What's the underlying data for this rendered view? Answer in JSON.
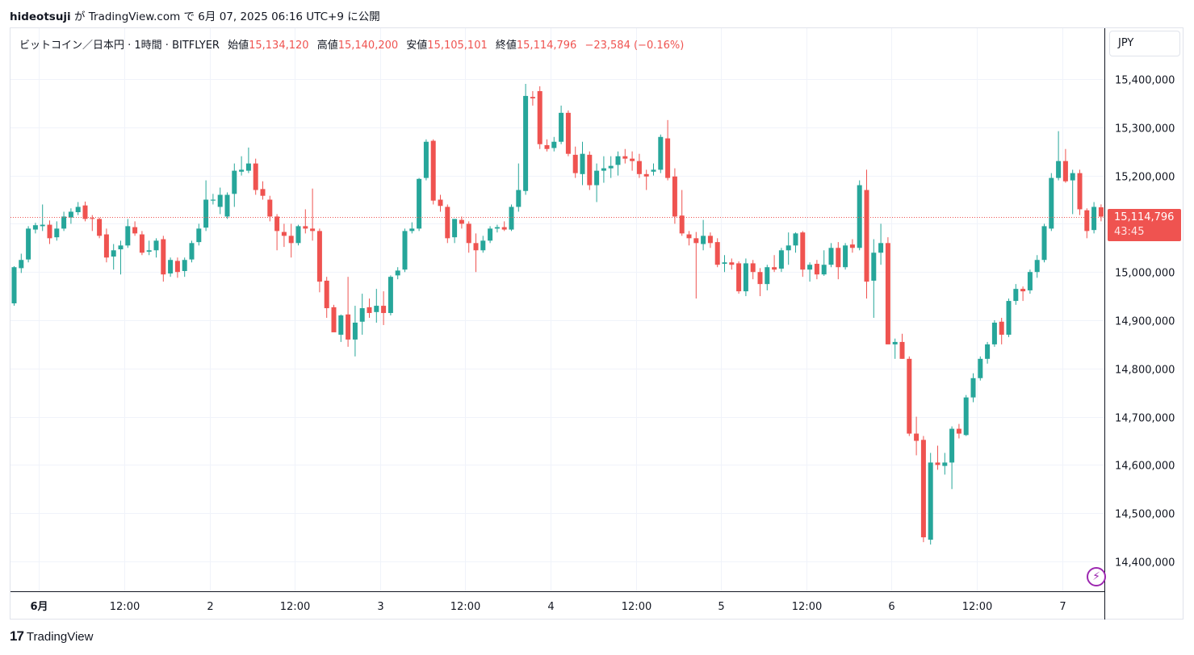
{
  "header": {
    "author": "hideotsuji",
    "text": "が TradingView.com で 6月 07, 2025 06:16 UTC+9 に公開"
  },
  "legend": {
    "symbol": "ビットコイン／日本円 · 1時間 · BITFLYER",
    "open_label": "始値",
    "open": "15,134,120",
    "high_label": "高値",
    "high": "15,140,200",
    "low_label": "安値",
    "low": "15,105,101",
    "close_label": "終値",
    "close": "15,114,796",
    "change": "−23,584 (−0.16%)"
  },
  "currency_button": "JPY",
  "price_tag": {
    "price": "15,114,796",
    "countdown": "43:45"
  },
  "footer": {
    "logo_mark": "17",
    "logo_text": "TradingView"
  },
  "colors": {
    "up": "#26a69a",
    "down": "#ef5350",
    "grid": "#f0f3fa",
    "last_price_line": "#ef5350"
  },
  "chart_data": {
    "type": "candlestick",
    "ylim": [
      14330000,
      15500000
    ],
    "y_ticks": [
      14400000,
      14500000,
      14600000,
      14700000,
      14800000,
      14900000,
      15000000,
      15100000,
      15200000,
      15300000,
      15400000
    ],
    "y_tick_labels": [
      "14,400,000",
      "14,500,000",
      "14,600,000",
      "14,700,000",
      "14,800,000",
      "14,900,000",
      "15,000,000",
      "15,100,000",
      "15,200,000",
      "15,300,000",
      "15,400,000"
    ],
    "x_ticks": [
      {
        "label": "6月",
        "bar": 3.5,
        "bold": true
      },
      {
        "label": "12:00",
        "bar": 15.5
      },
      {
        "label": "2",
        "bar": 27.5
      },
      {
        "label": "12:00",
        "bar": 39.5
      },
      {
        "label": "3",
        "bar": 51.5
      },
      {
        "label": "12:00",
        "bar": 63.5
      },
      {
        "label": "4",
        "bar": 75.5
      },
      {
        "label": "12:00",
        "bar": 87.5
      },
      {
        "label": "5",
        "bar": 99.5
      },
      {
        "label": "12:00",
        "bar": 111.5
      },
      {
        "label": "6",
        "bar": 123.5
      },
      {
        "label": "12:00",
        "bar": 135.5
      },
      {
        "label": "7",
        "bar": 147.5
      }
    ],
    "last_price": 15114796,
    "candles": [
      {
        "o": 14935000,
        "h": 15012000,
        "l": 14930000,
        "c": 15010000
      },
      {
        "o": 15008000,
        "h": 15038000,
        "l": 14998000,
        "c": 15025000
      },
      {
        "o": 15026000,
        "h": 15095000,
        "l": 15020000,
        "c": 15090000
      },
      {
        "o": 15088000,
        "h": 15102000,
        "l": 15080000,
        "c": 15097000
      },
      {
        "o": 15095000,
        "h": 15140000,
        "l": 15085000,
        "c": 15098000
      },
      {
        "o": 15098000,
        "h": 15107000,
        "l": 15058000,
        "c": 15070000
      },
      {
        "o": 15072000,
        "h": 15105000,
        "l": 15065000,
        "c": 15090000
      },
      {
        "o": 15090000,
        "h": 15125000,
        "l": 15085000,
        "c": 15115000
      },
      {
        "o": 15113000,
        "h": 15132000,
        "l": 15100000,
        "c": 15125000
      },
      {
        "o": 15124000,
        "h": 15145000,
        "l": 15118000,
        "c": 15135000
      },
      {
        "o": 15138000,
        "h": 15146000,
        "l": 15105000,
        "c": 15110000
      },
      {
        "o": 15112000,
        "h": 15118000,
        "l": 15085000,
        "c": 15110000
      },
      {
        "o": 15110000,
        "h": 15113000,
        "l": 15070000,
        "c": 15075000
      },
      {
        "o": 15078000,
        "h": 15090000,
        "l": 15020000,
        "c": 15030000
      },
      {
        "o": 15032000,
        "h": 15058000,
        "l": 15005000,
        "c": 15045000
      },
      {
        "o": 15047000,
        "h": 15065000,
        "l": 14995000,
        "c": 15055000
      },
      {
        "o": 15055000,
        "h": 15110000,
        "l": 15050000,
        "c": 15095000
      },
      {
        "o": 15093000,
        "h": 15105000,
        "l": 15075000,
        "c": 15080000
      },
      {
        "o": 15078000,
        "h": 15085000,
        "l": 15035000,
        "c": 15040000
      },
      {
        "o": 15042000,
        "h": 15065000,
        "l": 15035000,
        "c": 15045000
      },
      {
        "o": 15045000,
        "h": 15070000,
        "l": 15030000,
        "c": 15065000
      },
      {
        "o": 15068000,
        "h": 15075000,
        "l": 14980000,
        "c": 14995000
      },
      {
        "o": 14997000,
        "h": 15030000,
        "l": 14990000,
        "c": 15025000
      },
      {
        "o": 15023000,
        "h": 15030000,
        "l": 14988000,
        "c": 15000000
      },
      {
        "o": 15002000,
        "h": 15030000,
        "l": 14990000,
        "c": 15025000
      },
      {
        "o": 15026000,
        "h": 15065000,
        "l": 15020000,
        "c": 15060000
      },
      {
        "o": 15062000,
        "h": 15100000,
        "l": 15055000,
        "c": 15090000
      },
      {
        "o": 15092000,
        "h": 15190000,
        "l": 15085000,
        "c": 15150000
      },
      {
        "o": 15148000,
        "h": 15162000,
        "l": 15140000,
        "c": 15150000
      },
      {
        "o": 15135000,
        "h": 15175000,
        "l": 15120000,
        "c": 15160000
      },
      {
        "o": 15115000,
        "h": 15165000,
        "l": 15110000,
        "c": 15160000
      },
      {
        "o": 15162000,
        "h": 15225000,
        "l": 15135000,
        "c": 15210000
      },
      {
        "o": 15208000,
        "h": 15240000,
        "l": 15200000,
        "c": 15212000
      },
      {
        "o": 15210000,
        "h": 15258000,
        "l": 15205000,
        "c": 15225000
      },
      {
        "o": 15225000,
        "h": 15235000,
        "l": 15160000,
        "c": 15170000
      },
      {
        "o": 15172000,
        "h": 15188000,
        "l": 15150000,
        "c": 15158000
      },
      {
        "o": 15150000,
        "h": 15158000,
        "l": 15105000,
        "c": 15115000
      },
      {
        "o": 15115000,
        "h": 15120000,
        "l": 15045000,
        "c": 15085000
      },
      {
        "o": 15083000,
        "h": 15100000,
        "l": 15052000,
        "c": 15075000
      },
      {
        "o": 15075000,
        "h": 15100000,
        "l": 15030000,
        "c": 15060000
      },
      {
        "o": 15060000,
        "h": 15098000,
        "l": 15055000,
        "c": 15095000
      },
      {
        "o": 15095000,
        "h": 15130000,
        "l": 15080000,
        "c": 15090000
      },
      {
        "o": 15090000,
        "h": 15173000,
        "l": 15065000,
        "c": 15085000
      },
      {
        "o": 15085000,
        "h": 15090000,
        "l": 14958000,
        "c": 14980000
      },
      {
        "o": 14982000,
        "h": 14990000,
        "l": 14905000,
        "c": 14925000
      },
      {
        "o": 14927000,
        "h": 14932000,
        "l": 14880000,
        "c": 14875000
      },
      {
        "o": 14870000,
        "h": 14912000,
        "l": 14855000,
        "c": 14910000
      },
      {
        "o": 14912000,
        "h": 14990000,
        "l": 14845000,
        "c": 14860000
      },
      {
        "o": 14860000,
        "h": 14930000,
        "l": 14825000,
        "c": 14895000
      },
      {
        "o": 14897000,
        "h": 14955000,
        "l": 14870000,
        "c": 14925000
      },
      {
        "o": 14927000,
        "h": 14945000,
        "l": 14905000,
        "c": 14915000
      },
      {
        "o": 14917000,
        "h": 14965000,
        "l": 14895000,
        "c": 14930000
      },
      {
        "o": 14930000,
        "h": 14960000,
        "l": 14890000,
        "c": 14915000
      },
      {
        "o": 14915000,
        "h": 14993000,
        "l": 14910000,
        "c": 14990000
      },
      {
        "o": 14993000,
        "h": 15010000,
        "l": 14985000,
        "c": 15003000
      },
      {
        "o": 15005000,
        "h": 15090000,
        "l": 15000000,
        "c": 15085000
      },
      {
        "o": 15085000,
        "h": 15103000,
        "l": 15080000,
        "c": 15090000
      },
      {
        "o": 15090000,
        "h": 15195000,
        "l": 15085000,
        "c": 15193000
      },
      {
        "o": 15195000,
        "h": 15275000,
        "l": 15190000,
        "c": 15270000
      },
      {
        "o": 15272000,
        "h": 15275000,
        "l": 15140000,
        "c": 15148000
      },
      {
        "o": 15150000,
        "h": 15160000,
        "l": 15125000,
        "c": 15137000
      },
      {
        "o": 15135000,
        "h": 15140000,
        "l": 15060000,
        "c": 15070000
      },
      {
        "o": 15072000,
        "h": 15110000,
        "l": 15060000,
        "c": 15110000
      },
      {
        "o": 15108000,
        "h": 15115000,
        "l": 15090000,
        "c": 15100000
      },
      {
        "o": 15100000,
        "h": 15105000,
        "l": 15040000,
        "c": 15060000
      },
      {
        "o": 15060000,
        "h": 15080000,
        "l": 15000000,
        "c": 15045000
      },
      {
        "o": 15045000,
        "h": 15075000,
        "l": 15040000,
        "c": 15065000
      },
      {
        "o": 15065000,
        "h": 15095000,
        "l": 15060000,
        "c": 15090000
      },
      {
        "o": 15090000,
        "h": 15098000,
        "l": 15082000,
        "c": 15093000
      },
      {
        "o": 15093000,
        "h": 15105000,
        "l": 15085000,
        "c": 15088000
      },
      {
        "o": 15088000,
        "h": 15140000,
        "l": 15085000,
        "c": 15135000
      },
      {
        "o": 15135000,
        "h": 15225000,
        "l": 15125000,
        "c": 15170000
      },
      {
        "o": 15168000,
        "h": 15390000,
        "l": 15160000,
        "c": 15365000
      },
      {
        "o": 15363000,
        "h": 15375000,
        "l": 15345000,
        "c": 15360000
      },
      {
        "o": 15375000,
        "h": 15385000,
        "l": 15255000,
        "c": 15265000
      },
      {
        "o": 15263000,
        "h": 15275000,
        "l": 15250000,
        "c": 15255000
      },
      {
        "o": 15257000,
        "h": 15280000,
        "l": 15250000,
        "c": 15270000
      },
      {
        "o": 15270000,
        "h": 15345000,
        "l": 15265000,
        "c": 15330000
      },
      {
        "o": 15330000,
        "h": 15335000,
        "l": 15240000,
        "c": 15245000
      },
      {
        "o": 15243000,
        "h": 15260000,
        "l": 15195000,
        "c": 15205000
      },
      {
        "o": 15203000,
        "h": 15270000,
        "l": 15180000,
        "c": 15245000
      },
      {
        "o": 15243000,
        "h": 15250000,
        "l": 15170000,
        "c": 15180000
      },
      {
        "o": 15180000,
        "h": 15225000,
        "l": 15145000,
        "c": 15210000
      },
      {
        "o": 15210000,
        "h": 15240000,
        "l": 15185000,
        "c": 15215000
      },
      {
        "o": 15215000,
        "h": 15240000,
        "l": 15195000,
        "c": 15220000
      },
      {
        "o": 15222000,
        "h": 15250000,
        "l": 15200000,
        "c": 15240000
      },
      {
        "o": 15240000,
        "h": 15255000,
        "l": 15225000,
        "c": 15235000
      },
      {
        "o": 15235000,
        "h": 15250000,
        "l": 15210000,
        "c": 15230000
      },
      {
        "o": 15230000,
        "h": 15245000,
        "l": 15195000,
        "c": 15203000
      },
      {
        "o": 15203000,
        "h": 15212000,
        "l": 15170000,
        "c": 15198000
      },
      {
        "o": 15208000,
        "h": 15225000,
        "l": 15200000,
        "c": 15212000
      },
      {
        "o": 15212000,
        "h": 15285000,
        "l": 15205000,
        "c": 15280000
      },
      {
        "o": 15277000,
        "h": 15315000,
        "l": 15190000,
        "c": 15195000
      },
      {
        "o": 15198000,
        "h": 15215000,
        "l": 15100000,
        "c": 15115000
      },
      {
        "o": 15117000,
        "h": 15170000,
        "l": 15075000,
        "c": 15080000
      },
      {
        "o": 15078000,
        "h": 15085000,
        "l": 15055000,
        "c": 15070000
      },
      {
        "o": 15070000,
        "h": 15083000,
        "l": 14945000,
        "c": 15060000
      },
      {
        "o": 15058000,
        "h": 15108000,
        "l": 15045000,
        "c": 15075000
      },
      {
        "o": 15075000,
        "h": 15082000,
        "l": 15050000,
        "c": 15060000
      },
      {
        "o": 15062000,
        "h": 15070000,
        "l": 15010000,
        "c": 15015000
      },
      {
        "o": 15017000,
        "h": 15035000,
        "l": 15000000,
        "c": 15020000
      },
      {
        "o": 15020000,
        "h": 15028000,
        "l": 15005000,
        "c": 15015000
      },
      {
        "o": 15018000,
        "h": 15022000,
        "l": 14955000,
        "c": 14960000
      },
      {
        "o": 14960000,
        "h": 15028000,
        "l": 14950000,
        "c": 15018000
      },
      {
        "o": 15018000,
        "h": 15025000,
        "l": 14985000,
        "c": 15000000
      },
      {
        "o": 15000000,
        "h": 15008000,
        "l": 14950000,
        "c": 14975000
      },
      {
        "o": 14975000,
        "h": 15015000,
        "l": 14962000,
        "c": 15010000
      },
      {
        "o": 15010000,
        "h": 15035000,
        "l": 15000000,
        "c": 15005000
      },
      {
        "o": 15007000,
        "h": 15050000,
        "l": 15000000,
        "c": 15045000
      },
      {
        "o": 15045000,
        "h": 15082000,
        "l": 15015000,
        "c": 15055000
      },
      {
        "o": 15055000,
        "h": 15082000,
        "l": 15040000,
        "c": 15080000
      },
      {
        "o": 15082000,
        "h": 15085000,
        "l": 14990000,
        "c": 15005000
      },
      {
        "o": 15005000,
        "h": 15020000,
        "l": 14980000,
        "c": 15015000
      },
      {
        "o": 15017000,
        "h": 15025000,
        "l": 14985000,
        "c": 14995000
      },
      {
        "o": 14995000,
        "h": 15045000,
        "l": 14992000,
        "c": 15015000
      },
      {
        "o": 15015000,
        "h": 15060000,
        "l": 15010000,
        "c": 15050000
      },
      {
        "o": 15050000,
        "h": 15062000,
        "l": 14985000,
        "c": 15010000
      },
      {
        "o": 15010000,
        "h": 15060000,
        "l": 15005000,
        "c": 15055000
      },
      {
        "o": 15057000,
        "h": 15068000,
        "l": 15040000,
        "c": 15050000
      },
      {
        "o": 15050000,
        "h": 15190000,
        "l": 15045000,
        "c": 15180000
      },
      {
        "o": 15170000,
        "h": 15212000,
        "l": 14945000,
        "c": 14980000
      },
      {
        "o": 14982000,
        "h": 15068000,
        "l": 14905000,
        "c": 15040000
      },
      {
        "o": 15040000,
        "h": 15100000,
        "l": 15015000,
        "c": 15060000
      },
      {
        "o": 15060000,
        "h": 15072000,
        "l": 14850000,
        "c": 14850000
      },
      {
        "o": 14850000,
        "h": 14862000,
        "l": 14820000,
        "c": 14855000
      },
      {
        "o": 14855000,
        "h": 14872000,
        "l": 14820000,
        "c": 14820000
      },
      {
        "o": 14820000,
        "h": 14825000,
        "l": 14660000,
        "c": 14665000
      },
      {
        "o": 14665000,
        "h": 14700000,
        "l": 14620000,
        "c": 14650000
      },
      {
        "o": 14652000,
        "h": 14660000,
        "l": 14440000,
        "c": 14450000
      },
      {
        "o": 14445000,
        "h": 14625000,
        "l": 14435000,
        "c": 14605000
      },
      {
        "o": 14605000,
        "h": 14640000,
        "l": 14590000,
        "c": 14600000
      },
      {
        "o": 14598000,
        "h": 14625000,
        "l": 14580000,
        "c": 14605000
      },
      {
        "o": 14605000,
        "h": 14680000,
        "l": 14550000,
        "c": 14675000
      },
      {
        "o": 14675000,
        "h": 14685000,
        "l": 14655000,
        "c": 14665000
      },
      {
        "o": 14662000,
        "h": 14745000,
        "l": 14660000,
        "c": 14740000
      },
      {
        "o": 14740000,
        "h": 14790000,
        "l": 14730000,
        "c": 14780000
      },
      {
        "o": 14780000,
        "h": 14825000,
        "l": 14775000,
        "c": 14820000
      },
      {
        "o": 14820000,
        "h": 14855000,
        "l": 14810000,
        "c": 14850000
      },
      {
        "o": 14850000,
        "h": 14900000,
        "l": 14845000,
        "c": 14895000
      },
      {
        "o": 14897000,
        "h": 14905000,
        "l": 14850000,
        "c": 14870000
      },
      {
        "o": 14870000,
        "h": 14945000,
        "l": 14865000,
        "c": 14940000
      },
      {
        "o": 14940000,
        "h": 14975000,
        "l": 14932000,
        "c": 14965000
      },
      {
        "o": 14965000,
        "h": 14970000,
        "l": 14940000,
        "c": 14960000
      },
      {
        "o": 14962000,
        "h": 15005000,
        "l": 14955000,
        "c": 15000000
      },
      {
        "o": 15000000,
        "h": 15035000,
        "l": 14988000,
        "c": 15025000
      },
      {
        "o": 15025000,
        "h": 15100000,
        "l": 15020000,
        "c": 15095000
      },
      {
        "o": 15090000,
        "h": 15205000,
        "l": 15085000,
        "c": 15195000
      },
      {
        "o": 15195000,
        "h": 15292000,
        "l": 15190000,
        "c": 15230000
      },
      {
        "o": 15230000,
        "h": 15255000,
        "l": 15185000,
        "c": 15188000
      },
      {
        "o": 15190000,
        "h": 15212000,
        "l": 15120000,
        "c": 15205000
      },
      {
        "o": 15205000,
        "h": 15212000,
        "l": 15118000,
        "c": 15130000
      },
      {
        "o": 15128000,
        "h": 15132000,
        "l": 15070000,
        "c": 15085000
      },
      {
        "o": 15087000,
        "h": 15145000,
        "l": 15080000,
        "c": 15135000
      },
      {
        "o": 15134120,
        "h": 15140200,
        "l": 15105101,
        "c": 15114796
      }
    ]
  }
}
